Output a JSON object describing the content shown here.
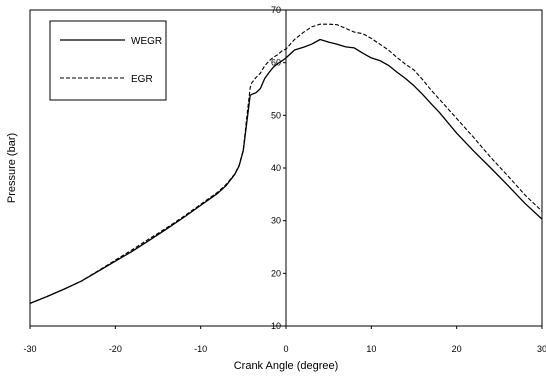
{
  "chart_data": {
    "type": "line",
    "title": "",
    "xlabel": "Crank Angle (degree)",
    "ylabel": "Pressure (bar)",
    "xlim": [
      -30,
      30
    ],
    "ylim": [
      10,
      70
    ],
    "x_ticks": [
      -30,
      -20,
      -10,
      0,
      10,
      20,
      30
    ],
    "y_ticks": [
      10,
      20,
      30,
      40,
      50,
      60,
      70
    ],
    "y_axis_at_x": 0,
    "grid": false,
    "legend": {
      "placement": "top-left",
      "boxed": true
    },
    "series": [
      {
        "name": "WEGR",
        "style": "solid",
        "color": "#000000",
        "x": [
          -30,
          -28,
          -26,
          -24,
          -22,
          -20,
          -18,
          -16,
          -14,
          -12,
          -10,
          -8,
          -7,
          -6,
          -5.5,
          -5,
          -4.6,
          -4.2,
          -4,
          -3.5,
          -3,
          -2.5,
          -2,
          -1.5,
          -1,
          -0.5,
          0,
          1,
          2,
          3,
          4,
          5,
          6,
          7,
          8,
          9,
          10,
          11,
          12,
          13,
          14,
          15,
          16,
          17,
          18,
          20,
          22,
          24,
          26,
          28,
          30
        ],
        "y": [
          14.3,
          15.6,
          17.0,
          18.5,
          20.4,
          22.3,
          24.2,
          26.3,
          28.4,
          30.6,
          32.9,
          35.2,
          36.7,
          38.8,
          40.4,
          43.3,
          48.5,
          53.8,
          54.0,
          54.3,
          55.1,
          57.0,
          58.1,
          59.1,
          59.8,
          60.3,
          60.9,
          62.4,
          62.9,
          63.5,
          64.4,
          63.9,
          63.5,
          63.0,
          62.8,
          61.8,
          60.9,
          60.4,
          59.5,
          58.2,
          57.0,
          55.6,
          54.0,
          52.2,
          50.5,
          46.6,
          43.2,
          40.0,
          36.7,
          33.3,
          30.3
        ]
      },
      {
        "name": "EGR",
        "style": "dashed",
        "color": "#000000",
        "x": [
          -30,
          -28,
          -26,
          -24,
          -22,
          -20,
          -18,
          -16,
          -14,
          -12,
          -10,
          -8,
          -7,
          -6,
          -5.5,
          -5,
          -4.6,
          -4.2,
          -4,
          -3.5,
          -3,
          -2.5,
          -2,
          -1.5,
          -1,
          -0.5,
          0,
          1,
          2,
          3,
          4,
          5,
          6,
          7,
          8,
          9,
          10,
          11,
          12,
          13,
          14,
          15,
          16,
          17,
          18,
          20,
          22,
          24,
          26,
          28,
          30
        ],
        "y": [
          14.3,
          15.6,
          17.0,
          18.5,
          20.5,
          22.5,
          24.5,
          26.6,
          28.6,
          30.8,
          33.1,
          35.4,
          36.9,
          38.9,
          40.5,
          43.5,
          49.5,
          55.3,
          56.2,
          57.2,
          58.0,
          59.4,
          60.3,
          61.0,
          61.5,
          62.2,
          62.6,
          64.4,
          65.7,
          66.8,
          67.3,
          67.3,
          67.2,
          66.5,
          65.8,
          65.5,
          64.6,
          63.5,
          62.4,
          61.0,
          59.7,
          58.6,
          56.8,
          54.8,
          53.0,
          49.4,
          45.8,
          42.0,
          38.5,
          34.9,
          31.8
        ]
      }
    ]
  }
}
